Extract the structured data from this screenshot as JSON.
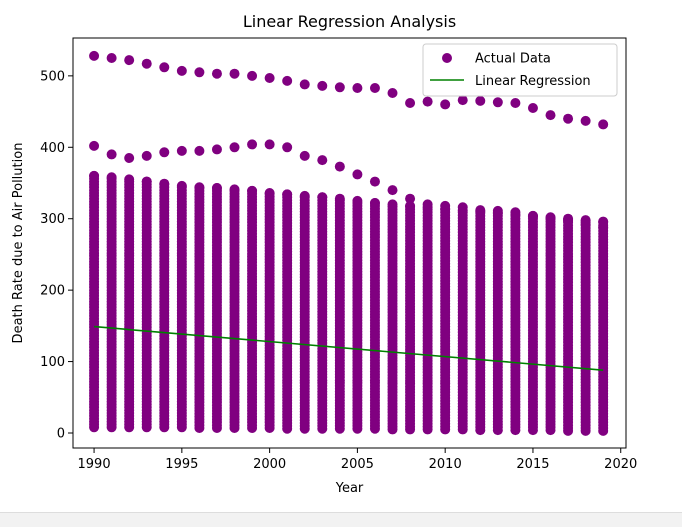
{
  "chart_data": {
    "type": "scatter",
    "title": "Linear Regression Analysis",
    "xlabel": "Year",
    "ylabel": "Death Rate due to Air Pollution",
    "xlim": [
      1988.8,
      2020.3
    ],
    "ylim": [
      -21,
      553
    ],
    "xticks": [
      1990,
      1995,
      2000,
      2005,
      2010,
      2015,
      2020
    ],
    "yticks": [
      0,
      100,
      200,
      300,
      400,
      500
    ],
    "grid": false,
    "legend_position": "top-right",
    "legend": [
      {
        "label": "Actual Data",
        "kind": "marker",
        "color": "#800080"
      },
      {
        "label": "Linear Regression",
        "kind": "line",
        "color": "#008000"
      }
    ],
    "marker_color": "#800080",
    "line_color": "#008000",
    "years": [
      1990,
      1991,
      1992,
      1993,
      1994,
      1995,
      1996,
      1997,
      1998,
      1999,
      2000,
      2001,
      2002,
      2003,
      2004,
      2005,
      2006,
      2007,
      2008,
      2009,
      2010,
      2011,
      2012,
      2013,
      2014,
      2015,
      2016,
      2017,
      2018,
      2019
    ],
    "top_outliers": [
      528,
      525,
      522,
      517,
      512,
      507,
      505,
      503,
      503,
      500,
      497,
      493,
      488,
      486,
      484,
      483,
      483,
      476,
      462,
      464,
      460,
      466,
      465,
      463,
      462,
      455,
      445,
      440,
      437,
      432
    ],
    "second_outliers": [
      402,
      390,
      385,
      388,
      393,
      395,
      395,
      397,
      400,
      404,
      404,
      400,
      388,
      382,
      373,
      362,
      352,
      340,
      328,
      320,
      318,
      316,
      312,
      311,
      309,
      303,
      300,
      297,
      292,
      288
    ],
    "dense_band_top": [
      360,
      358,
      355,
      352,
      349,
      346,
      344,
      343,
      341,
      339,
      336,
      334,
      332,
      330,
      328,
      325,
      322,
      320,
      318,
      316,
      314,
      312,
      310,
      308,
      306,
      304,
      302,
      300,
      298,
      296
    ],
    "dense_band_bottom": [
      8,
      8,
      8,
      8,
      8,
      8,
      7,
      7,
      7,
      7,
      7,
      6,
      6,
      6,
      6,
      6,
      6,
      5,
      5,
      5,
      5,
      5,
      4,
      4,
      4,
      4,
      4,
      3,
      3,
      3
    ],
    "regression": {
      "x": [
        1990,
        2019
      ],
      "y": [
        149,
        88
      ]
    }
  }
}
